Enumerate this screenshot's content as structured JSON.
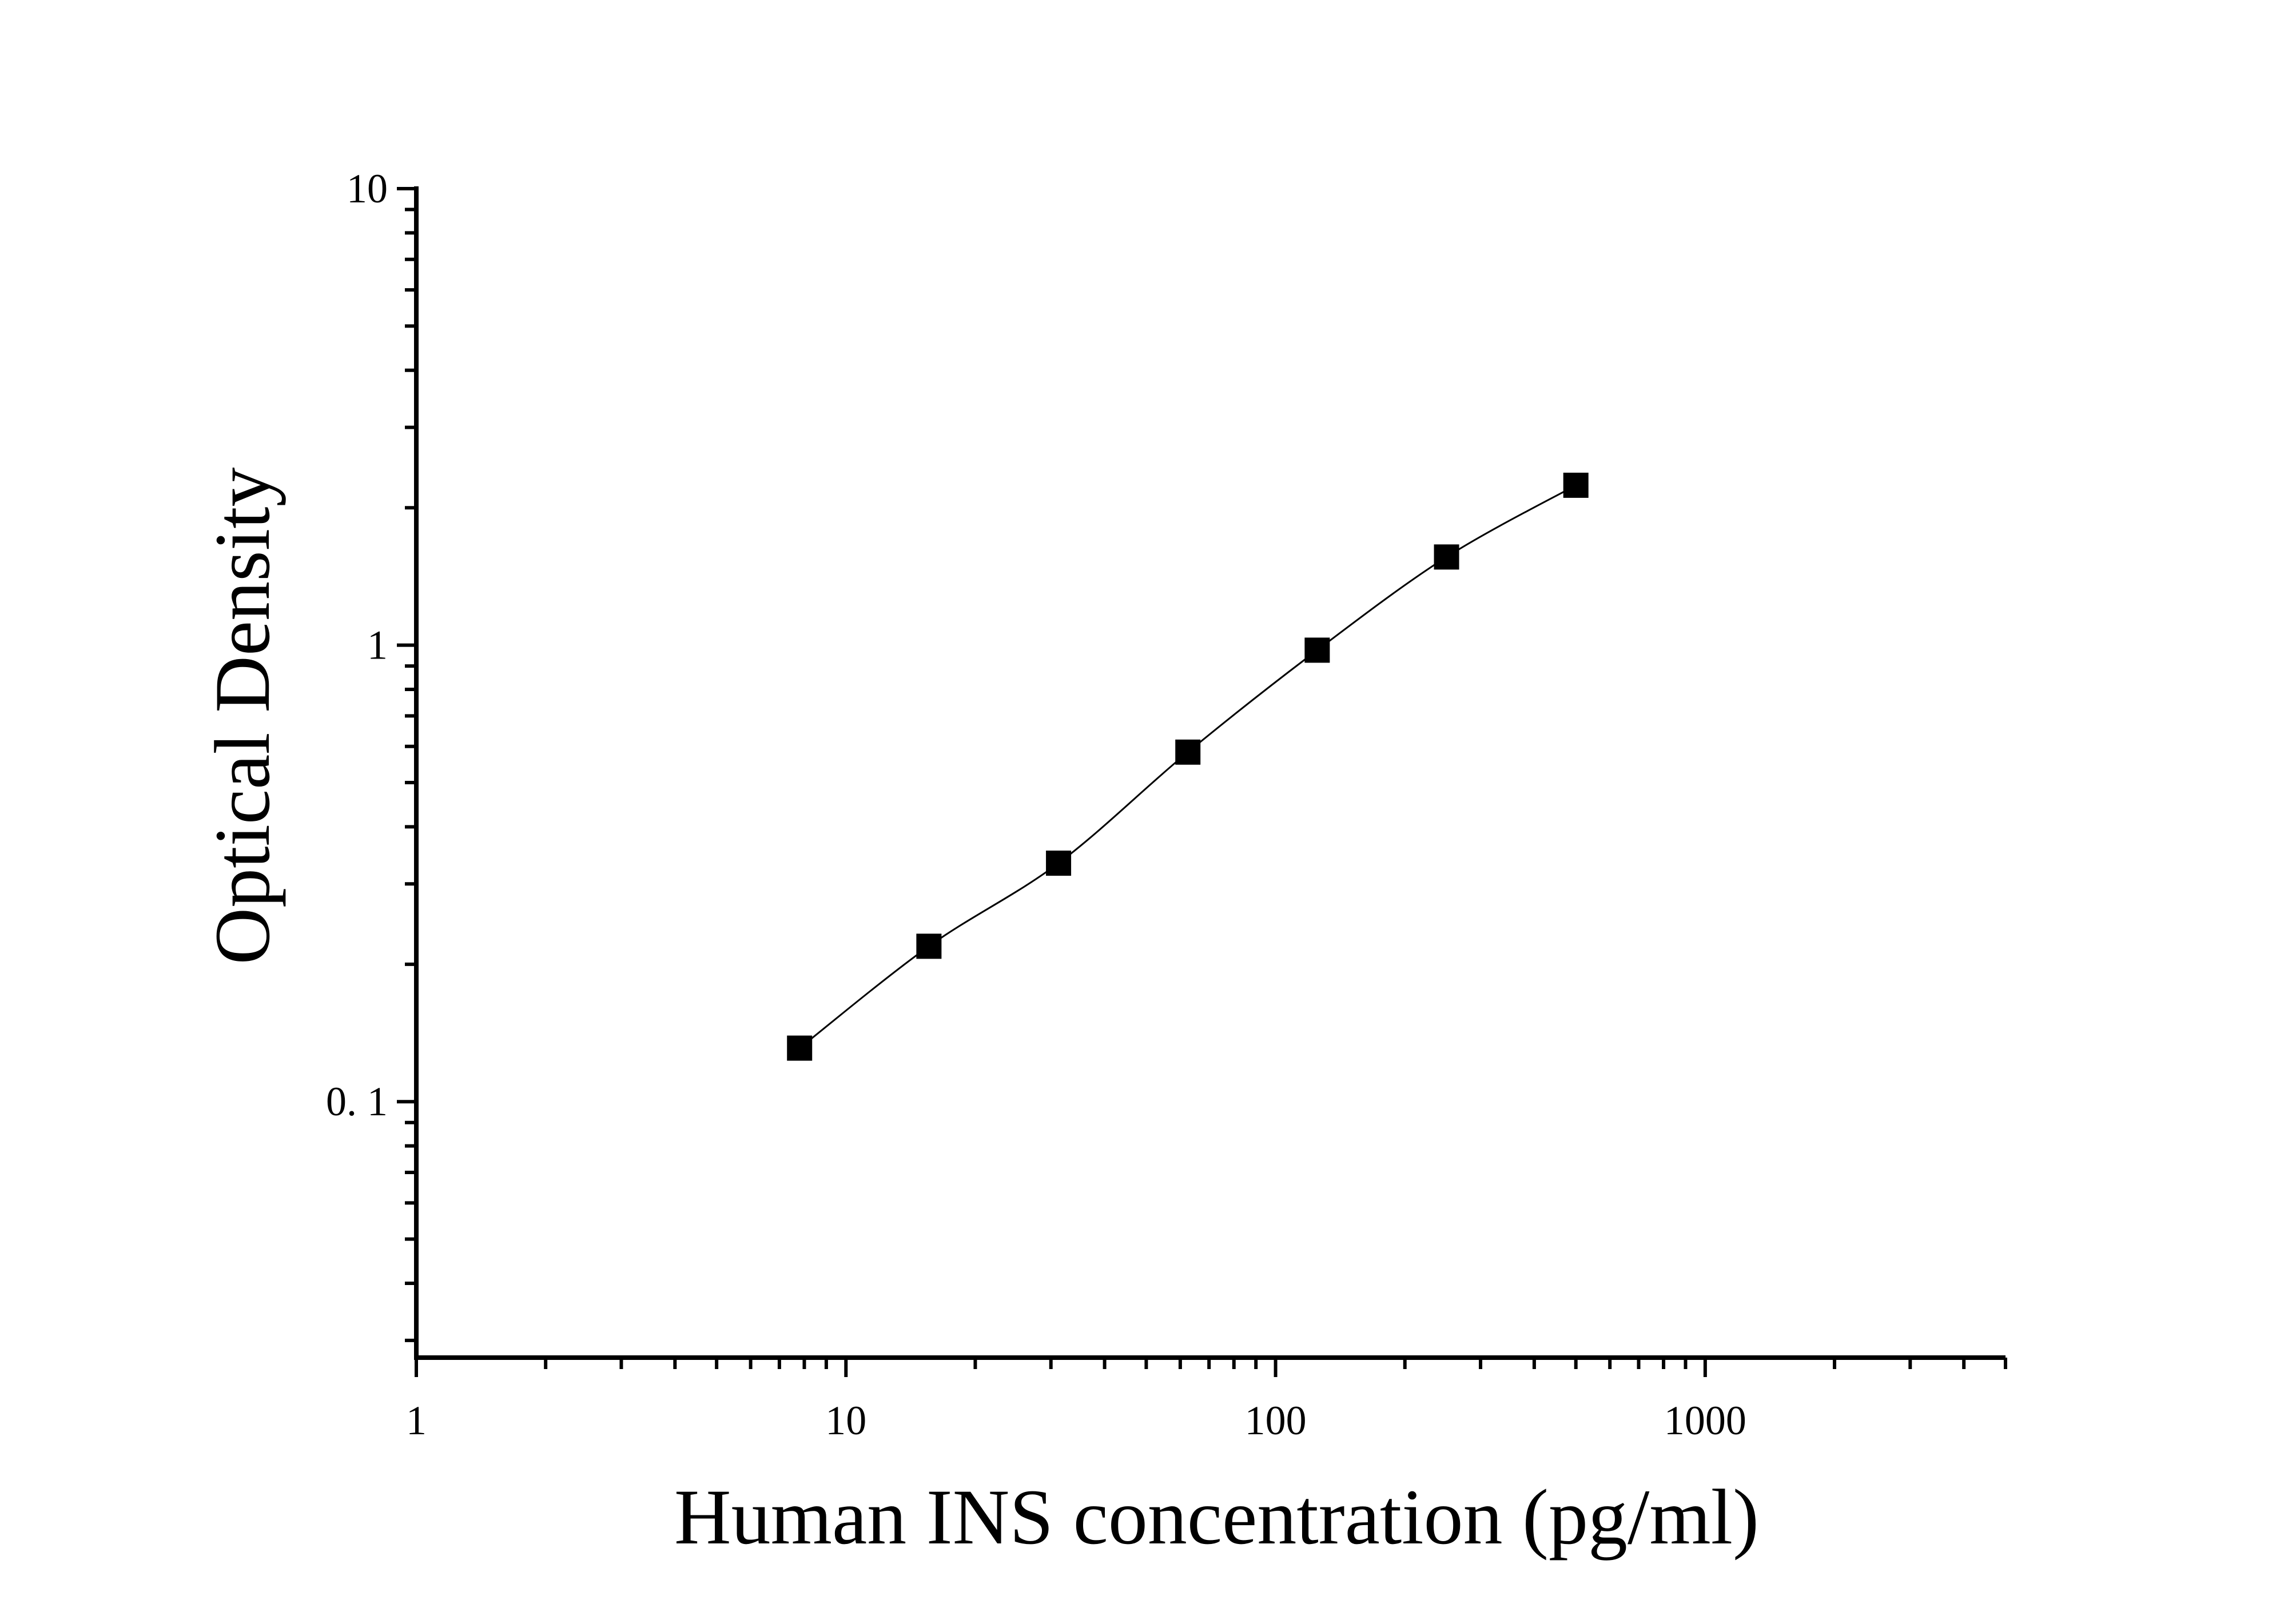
{
  "chart_data": {
    "type": "scatter",
    "title": "",
    "xlabel": "Human INS concentration (pg/ml)",
    "ylabel": "Optical Density",
    "x_scale": "log",
    "y_scale": "log",
    "xlim": [
      1,
      5000
    ],
    "ylim": [
      0.0275,
      10
    ],
    "x_ticks": [
      1,
      10,
      100,
      1000
    ],
    "x_tick_labels": [
      "1",
      "10",
      "100",
      "1000"
    ],
    "y_ticks": [
      0.1,
      1,
      10
    ],
    "y_tick_labels": [
      "0. 1",
      "1",
      "10"
    ],
    "grid": false,
    "legend": "none",
    "series": [
      {
        "marker": "square",
        "x": [
          7.8,
          15.6,
          31.25,
          62.5,
          125,
          250,
          500
        ],
        "y": [
          0.131,
          0.219,
          0.333,
          0.583,
          0.975,
          1.56,
          2.24
        ],
        "fit_line": true
      }
    ],
    "colors": {
      "marker": "#000000",
      "line": "#000000",
      "axis": "#000000"
    }
  }
}
